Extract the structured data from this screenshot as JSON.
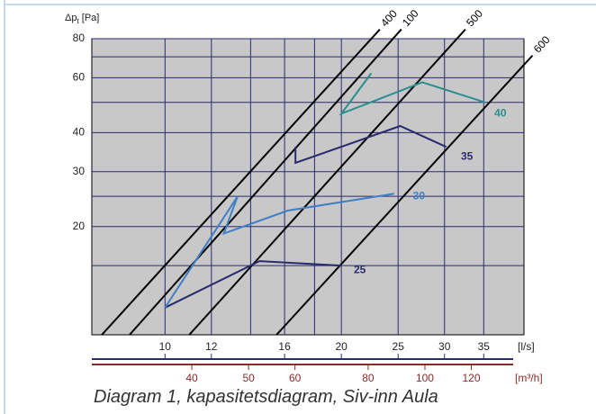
{
  "chart_data": {
    "type": "line",
    "title": "",
    "ylabel_main": "Δp",
    "ylabel_sub": "t",
    "ylabel_unit": " [Pa]",
    "x_unit_ls": "[l/s]",
    "x_unit_m3h": "[m³/h]",
    "y_scale": "log",
    "x_scale": "log",
    "xlim_ls": [
      7.5,
      41
    ],
    "ylim_pa": [
      9,
      80
    ],
    "y_ticks": [
      20,
      30,
      40,
      60,
      80
    ],
    "y_gridlines": [
      15,
      20,
      25,
      30,
      40,
      50,
      60,
      70,
      80
    ],
    "x_ticks_ls": [
      10,
      12,
      16,
      20,
      25,
      30,
      35
    ],
    "x_gridlines_ls": [
      10,
      12,
      14,
      16,
      18,
      20,
      25,
      30,
      35
    ],
    "x_ticks_m3h": [
      40,
      50,
      60,
      80,
      100,
      120
    ],
    "grid": true,
    "background_color": "#c8c8c8",
    "diagonal_lines": [
      {
        "label": "400",
        "points": [
          [
            7.8,
            9
          ],
          [
            22.5,
            80
          ]
        ]
      },
      {
        "label": "100",
        "points": [
          [
            8.7,
            9
          ],
          [
            24.5,
            80
          ]
        ]
      },
      {
        "label": "500",
        "points": [
          [
            11.0,
            9
          ],
          [
            31.5,
            80
          ]
        ]
      },
      {
        "label": "600",
        "points": [
          [
            15.5,
            9
          ],
          [
            41.0,
            66
          ]
        ]
      }
    ],
    "series": [
      {
        "name": "25",
        "color": "#2a2a6e",
        "points": [
          [
            10,
            11
          ],
          [
            14.5,
            15.5
          ],
          [
            20,
            15
          ]
        ],
        "label_at": [
          21,
          14.5
        ]
      },
      {
        "name": "30",
        "color": "#3f7fc8",
        "points": [
          [
            10,
            11
          ],
          [
            13.3,
            25
          ],
          [
            12.6,
            19
          ],
          [
            16.2,
            22.5
          ],
          [
            24.6,
            25.5
          ]
        ],
        "label_at": [
          26.5,
          25
        ]
      },
      {
        "name": "35",
        "color": "#2a2a6e",
        "points": [
          [
            16.7,
            36
          ],
          [
            16.7,
            32
          ],
          [
            25.2,
            42
          ],
          [
            30.2,
            36
          ]
        ],
        "label_at": [
          32,
          33.5
        ]
      },
      {
        "name": "40",
        "color": "#2b8e8e",
        "points": [
          [
            22.5,
            62
          ],
          [
            20,
            46
          ],
          [
            27.5,
            58
          ],
          [
            35.2,
            50
          ]
        ],
        "label_at": [
          36.5,
          46
        ]
      }
    ]
  },
  "caption": "Diagram 1, kapasitetsdiagram, Siv-inn Aula",
  "colors": {
    "frame_line": "#c8d8ec",
    "axis_secondary": "#8b2a2a",
    "axis_primary": "#2a2a6e",
    "diagonal": "#000000"
  }
}
